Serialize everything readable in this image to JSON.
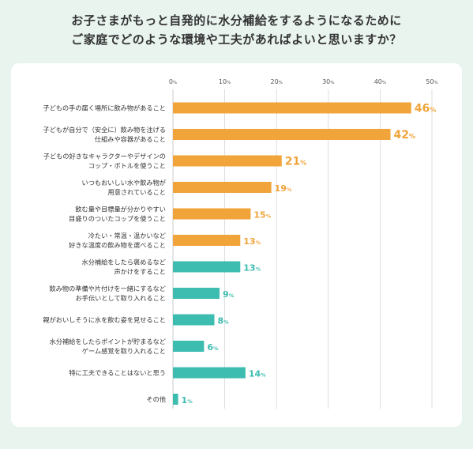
{
  "title": {
    "line1": "お子さまがもっと自発的に水分補給をするようになるために",
    "line2": "ご家庭でどのような環境や工夫があればよいと思いますか？"
  },
  "colors": {
    "orange": "#F0A43A",
    "teal": "#3DBDB0",
    "grid": "#d6d6d6",
    "background": "#e9f4ef"
  },
  "chart_data": {
    "type": "bar",
    "orientation": "horizontal",
    "x_ticks": [
      "0%",
      "10%",
      "20%",
      "30%",
      "40%",
      "50%"
    ],
    "xlim": [
      0,
      50
    ],
    "grid": true,
    "unit": "%",
    "categories": [
      [
        "子どもの手の届く場所に飲み物があること"
      ],
      [
        "子どもが自分で（安全に）飲み物を注げる",
        "仕組みや容器があること"
      ],
      [
        "子どもの好きなキャラクターやデザインの",
        "コップ・ボトルを使うこと"
      ],
      [
        "いつもおいしい水や飲み物が",
        "用意されていること"
      ],
      [
        "飲む量や目標量が分かりやすい",
        "目盛りのついたコップを使うこと"
      ],
      [
        "冷たい・常温・温かいなど",
        "好きな温度の飲み物を選べること"
      ],
      [
        "水分補給をしたら褒めるなど",
        "声かけをすること"
      ],
      [
        "飲み物の準備や片付けを一緒にするなど",
        "お手伝いとして取り入れること"
      ],
      [
        "親がおいしそうに水を飲む姿を見せること"
      ],
      [
        "水分補給をしたらポイントが貯まるなど",
        "ゲーム感覚を取り入れること"
      ],
      [
        "特に工夫できることはないと思う"
      ],
      [
        "その他"
      ]
    ],
    "values": [
      46,
      42,
      21,
      19,
      15,
      13,
      13,
      9,
      8,
      6,
      14,
      1
    ],
    "colors": [
      "orange",
      "orange",
      "orange",
      "orange",
      "orange",
      "orange",
      "teal",
      "teal",
      "teal",
      "teal",
      "teal",
      "teal"
    ]
  }
}
